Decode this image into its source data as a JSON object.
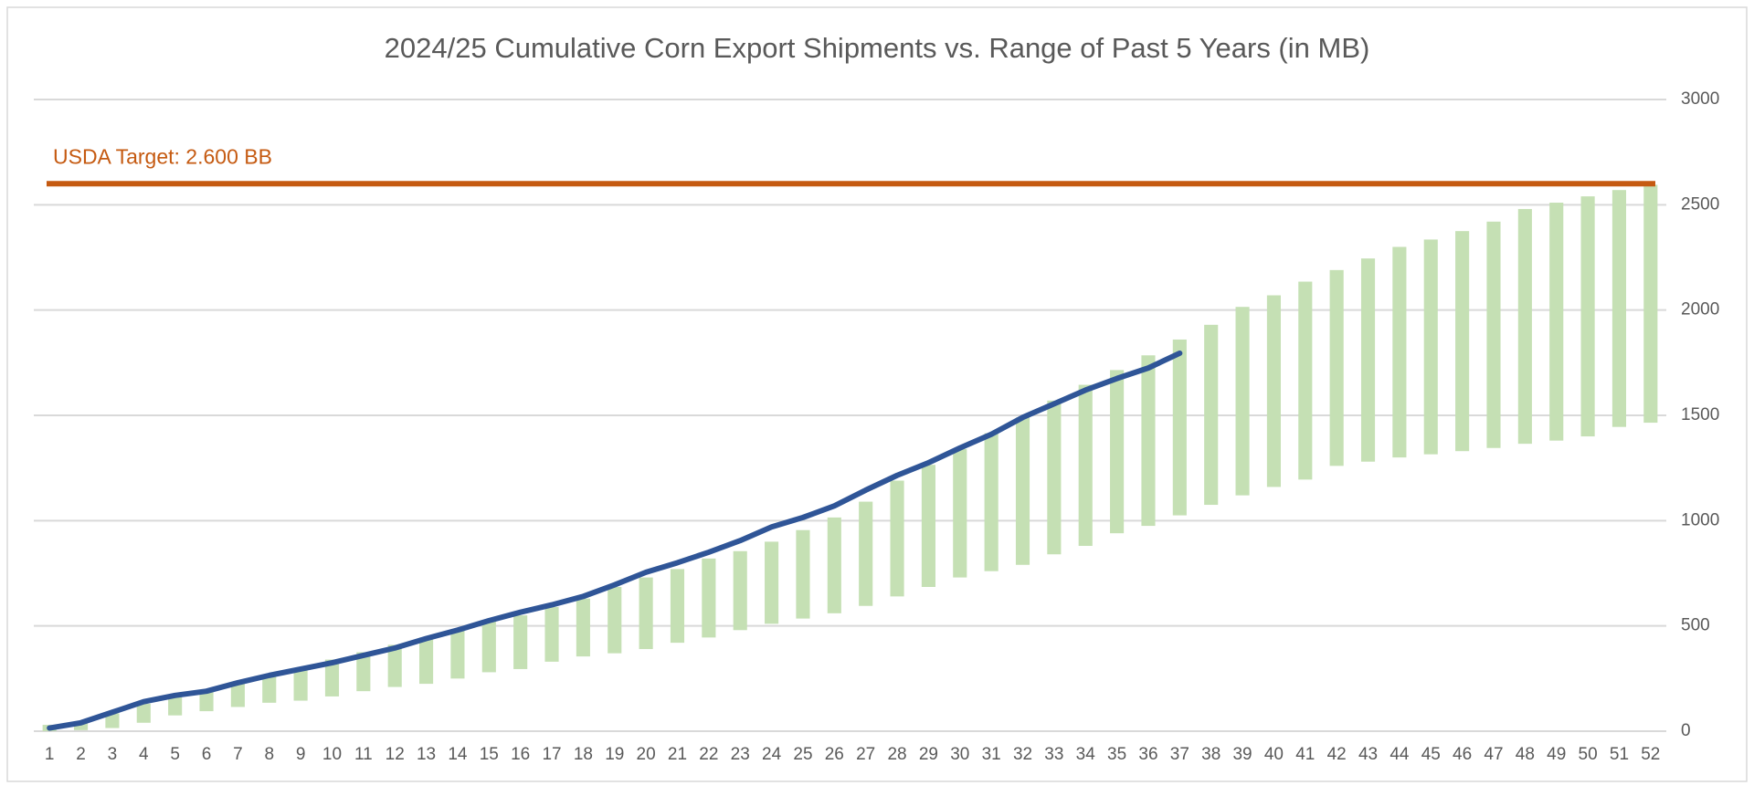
{
  "chart_data": {
    "type": "range-bar-line",
    "title": "2024/25 Cumulative Corn Export Shipments vs. Range of Past 5 Years (in MB)",
    "categories": [
      "1",
      "2",
      "3",
      "4",
      "5",
      "6",
      "7",
      "8",
      "9",
      "10",
      "11",
      "12",
      "13",
      "14",
      "15",
      "16",
      "17",
      "18",
      "19",
      "20",
      "21",
      "22",
      "23",
      "24",
      "25",
      "26",
      "27",
      "28",
      "29",
      "30",
      "31",
      "32",
      "33",
      "34",
      "35",
      "36",
      "37",
      "38",
      "39",
      "40",
      "41",
      "42",
      "43",
      "44",
      "45",
      "46",
      "47",
      "48",
      "49",
      "50",
      "51",
      "52"
    ],
    "range": {
      "color": "#c5e0b4",
      "low": [
        0,
        5,
        15,
        40,
        75,
        95,
        115,
        135,
        145,
        165,
        190,
        210,
        225,
        250,
        280,
        295,
        330,
        355,
        370,
        390,
        420,
        445,
        480,
        510,
        535,
        560,
        595,
        640,
        685,
        730,
        760,
        790,
        840,
        880,
        940,
        975,
        1025,
        1075,
        1120,
        1160,
        1195,
        1260,
        1280,
        1300,
        1315,
        1330,
        1345,
        1365,
        1380,
        1400,
        1445,
        1465
      ],
      "high": [
        30,
        45,
        85,
        130,
        165,
        195,
        235,
        265,
        300,
        340,
        375,
        410,
        445,
        480,
        520,
        550,
        590,
        630,
        685,
        730,
        770,
        820,
        855,
        900,
        955,
        1015,
        1090,
        1190,
        1265,
        1340,
        1415,
        1490,
        1570,
        1645,
        1715,
        1785,
        1860,
        1930,
        2015,
        2070,
        2135,
        2190,
        2245,
        2300,
        2335,
        2375,
        2420,
        2480,
        2510,
        2540,
        2570,
        2595
      ]
    },
    "line": {
      "color": "#2f5597",
      "values": [
        15,
        40,
        90,
        140,
        170,
        190,
        230,
        265,
        295,
        325,
        360,
        395,
        440,
        480,
        525,
        565,
        600,
        640,
        695,
        755,
        800,
        850,
        905,
        970,
        1015,
        1070,
        1145,
        1215,
        1275,
        1345,
        1410,
        1490,
        1555,
        1620,
        1675,
        1725,
        1795
      ]
    },
    "target": {
      "value": 2600,
      "label": "USDA Target: 2.600 BB",
      "color": "#c55a11"
    },
    "ylim": [
      0,
      3000
    ],
    "yticks": [
      0,
      500,
      1000,
      1500,
      2000,
      2500,
      3000
    ],
    "grid": true
  }
}
